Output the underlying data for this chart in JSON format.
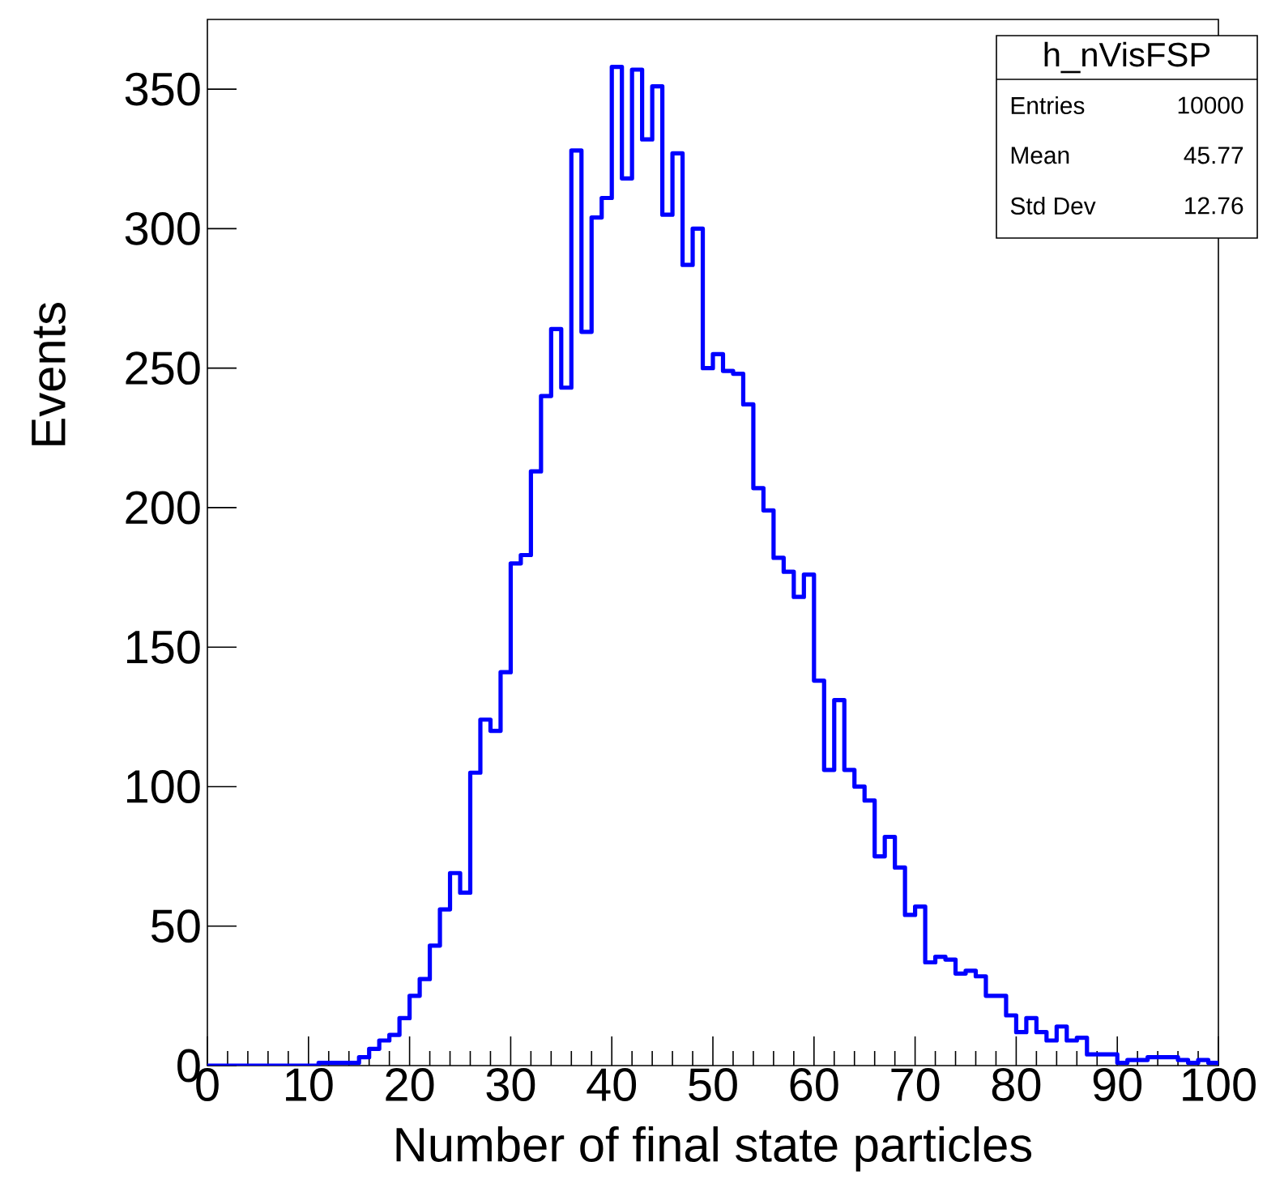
{
  "chart_data": {
    "type": "histogram",
    "xlabel": "Number of final state particles",
    "ylabel": "Events",
    "color": "#0000ff",
    "bins": [
      0,
      1,
      2,
      3,
      4,
      5,
      6,
      7,
      8,
      9,
      10,
      11,
      12,
      13,
      14,
      15,
      16,
      17,
      18,
      19,
      20,
      21,
      22,
      23,
      24,
      25,
      26,
      27,
      28,
      29,
      30,
      31,
      32,
      33,
      34,
      35,
      36,
      37,
      38,
      39,
      40,
      41,
      42,
      43,
      44,
      45,
      46,
      47,
      48,
      49,
      50,
      51,
      52,
      53,
      54,
      55,
      56,
      57,
      58,
      59,
      60,
      61,
      62,
      63,
      64,
      65,
      66,
      67,
      68,
      69,
      70,
      71,
      72,
      73,
      74,
      75,
      76,
      77,
      78,
      79,
      80,
      81,
      82,
      83,
      84,
      85,
      86,
      87,
      88,
      89,
      90,
      91,
      92,
      93,
      94,
      95,
      96,
      97,
      98,
      99,
      100
    ],
    "values": [
      0,
      0,
      0,
      0,
      0,
      0,
      0,
      0,
      0,
      0,
      0,
      1,
      1,
      1,
      1,
      3,
      6,
      9,
      11,
      17,
      25,
      31,
      43,
      56,
      69,
      62,
      105,
      124,
      120,
      141,
      180,
      183,
      213,
      240,
      264,
      243,
      328,
      263,
      304,
      311,
      358,
      318,
      357,
      332,
      351,
      305,
      327,
      287,
      300,
      250,
      255,
      249,
      248,
      237,
      207,
      199,
      182,
      177,
      168,
      176,
      138,
      106,
      131,
      106,
      100,
      95,
      75,
      82,
      71,
      54,
      57,
      37,
      39,
      38,
      33,
      34,
      32,
      25,
      25,
      18,
      12,
      17,
      12,
      9,
      14,
      9,
      10,
      4,
      4,
      4,
      1,
      2,
      2,
      3,
      3,
      3,
      2,
      1,
      2,
      1
    ],
    "xlim": [
      0,
      100
    ],
    "ylim": [
      0,
      375
    ],
    "xticks": [
      0,
      10,
      20,
      30,
      40,
      50,
      60,
      70,
      80,
      90,
      100
    ],
    "yticks": [
      0,
      50,
      100,
      150,
      200,
      250,
      300,
      350
    ],
    "grid": false,
    "annotations": [
      "h_nVisFSP",
      "Entries",
      "10000",
      "Mean",
      "45.77",
      "Std Dev",
      "12.76"
    ]
  }
}
